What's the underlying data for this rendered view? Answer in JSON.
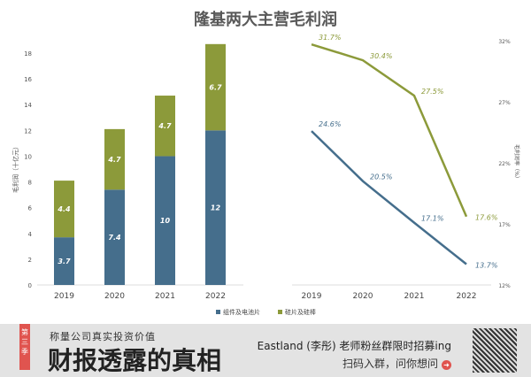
{
  "title": "隆基两大主营毛利润",
  "chart_data": [
    {
      "type": "bar",
      "stacked": true,
      "categories": [
        "2019",
        "2020",
        "2021",
        "2022"
      ],
      "series": [
        {
          "name": "组件及电池片",
          "values": [
            3.7,
            7.4,
            10,
            12
          ],
          "color": "#456e8c"
        },
        {
          "name": "硅片及硅棒",
          "values": [
            4.4,
            4.7,
            4.7,
            6.7
          ],
          "color": "#8c9a3a"
        }
      ],
      "ylabel": "毛利润（十亿元）",
      "ylim": [
        0,
        18
      ],
      "yticks": [
        "0",
        "2",
        "4",
        "6",
        "8",
        "10",
        "12",
        "14",
        "16",
        "18"
      ],
      "legend": "bottom"
    },
    {
      "type": "line",
      "categories": [
        "2019",
        "2020",
        "2021",
        "2022"
      ],
      "series": [
        {
          "name": "硅片及硅棒",
          "values": [
            31.7,
            30.4,
            27.5,
            17.6
          ],
          "labels": [
            "31.7%",
            "30.4%",
            "27.5%",
            "17.6%"
          ],
          "color": "#8c9a3a"
        },
        {
          "name": "组件及电池片",
          "values": [
            24.6,
            20.5,
            17.1,
            13.7
          ],
          "labels": [
            "24.6%",
            "20.5%",
            "17.1%",
            "13.7%"
          ],
          "color": "#456e8c"
        }
      ],
      "ylabel": "毛利润率（%）",
      "ylim": [
        12,
        32
      ],
      "yticks": [
        "12%",
        "17%",
        "22%",
        "27%",
        "32%"
      ]
    }
  ],
  "banner": {
    "tag": "第三季",
    "subtitle": "称量公司真实投资价值",
    "headline": "财报透露的真相",
    "promo": "Eastland (李彤) 老师粉丝群限时招募ing",
    "promo2": "扫码入群，问你想问"
  }
}
